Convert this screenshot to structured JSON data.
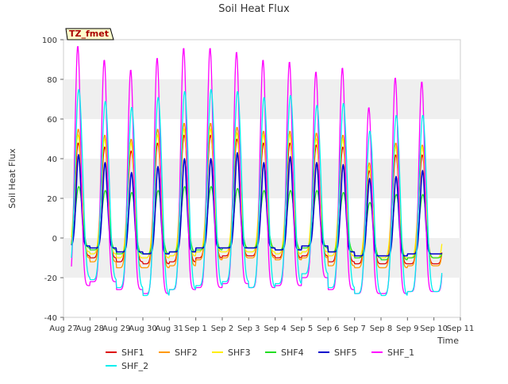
{
  "chart_data": {
    "type": "line",
    "title": "Soil Heat Flux",
    "xlabel": "Time",
    "ylabel": "Soil Heat Flux",
    "ylim": [
      -40,
      100
    ],
    "yticks": [
      -40,
      -20,
      0,
      20,
      40,
      60,
      80,
      100
    ],
    "xlim_days": [
      0,
      15
    ],
    "x_tick_labels": [
      "Aug 27",
      "Aug 28",
      "Aug 29",
      "Aug 30",
      "Aug 31",
      "Sep 1",
      "Sep 2",
      "Sep 3",
      "Sep 4",
      "Sep 5",
      "Sep 6",
      "Sep 7",
      "Sep 8",
      "Sep 9",
      "Sep 10",
      "Sep 11"
    ],
    "grid": "horizontal bands",
    "annotation": "TZ_fmet",
    "legend_position": "bottom",
    "data_range_days": [
      0.3,
      14.3
    ],
    "daily_peak_time_day_fraction": 0.55,
    "series": [
      {
        "name": "SHF1",
        "color": "#dd0000",
        "daily_max": [
          48,
          46,
          44,
          48,
          52,
          52,
          50,
          48,
          48,
          47,
          46,
          34,
          42,
          42
        ],
        "daily_min": [
          -9,
          -10,
          -12,
          -13,
          -12,
          -10,
          -9,
          -9,
          -10,
          -9,
          -12,
          -13,
          -13,
          -13
        ]
      },
      {
        "name": "SHF2",
        "color": "#ff9900",
        "daily_max": [
          55,
          52,
          50,
          55,
          58,
          58,
          56,
          54,
          54,
          53,
          52,
          38,
          48,
          47
        ],
        "daily_min": [
          -10,
          -12,
          -15,
          -15,
          -14,
          -11,
          -10,
          -10,
          -11,
          -10,
          -14,
          -15,
          -15,
          -14
        ]
      },
      {
        "name": "SHF3",
        "color": "#ffee00",
        "daily_max": [
          52,
          50,
          48,
          52,
          55,
          55,
          53,
          52,
          52,
          50,
          50,
          36,
          46,
          46
        ],
        "daily_min": [
          -7,
          -8,
          -10,
          -10,
          -9,
          -7,
          -7,
          -7,
          -8,
          -7,
          -9,
          -10,
          -10,
          -10
        ]
      },
      {
        "name": "SHF4",
        "color": "#22dd22",
        "daily_max": [
          26,
          24,
          23,
          24,
          26,
          26,
          25,
          24,
          24,
          24,
          23,
          18,
          22,
          22
        ],
        "daily_min": [
          -5,
          -6,
          -8,
          -8,
          -7,
          -6,
          -5,
          -5,
          -6,
          -5,
          -7,
          -10,
          -11,
          -10
        ]
      },
      {
        "name": "SHF5",
        "color": "#0000cc",
        "daily_max": [
          42,
          38,
          33,
          36,
          40,
          40,
          43,
          38,
          41,
          38,
          37,
          30,
          31,
          34
        ],
        "daily_min": [
          -4,
          -5,
          -7,
          -8,
          -7,
          -5,
          -5,
          -5,
          -6,
          -4,
          -7,
          -9,
          -9,
          -8
        ]
      },
      {
        "name": "SHF_1",
        "color": "#ff00ff",
        "daily_max": [
          97,
          90,
          85,
          91,
          96,
          96,
          94,
          90,
          89,
          84,
          86,
          66,
          81,
          79
        ],
        "daily_min": [
          -24,
          -22,
          -26,
          -28,
          -26,
          -25,
          -23,
          -25,
          -24,
          -20,
          -26,
          -28,
          -28,
          -27
        ]
      },
      {
        "name": "SHF_2",
        "color": "#00eeee",
        "daily_max": [
          75,
          69,
          66,
          71,
          74,
          75,
          74,
          71,
          72,
          67,
          68,
          54,
          62,
          62
        ],
        "daily_min": [
          -20,
          -21,
          -25,
          -29,
          -26,
          -24,
          -22,
          -25,
          -23,
          -18,
          -25,
          -28,
          -29,
          -27
        ]
      }
    ]
  }
}
